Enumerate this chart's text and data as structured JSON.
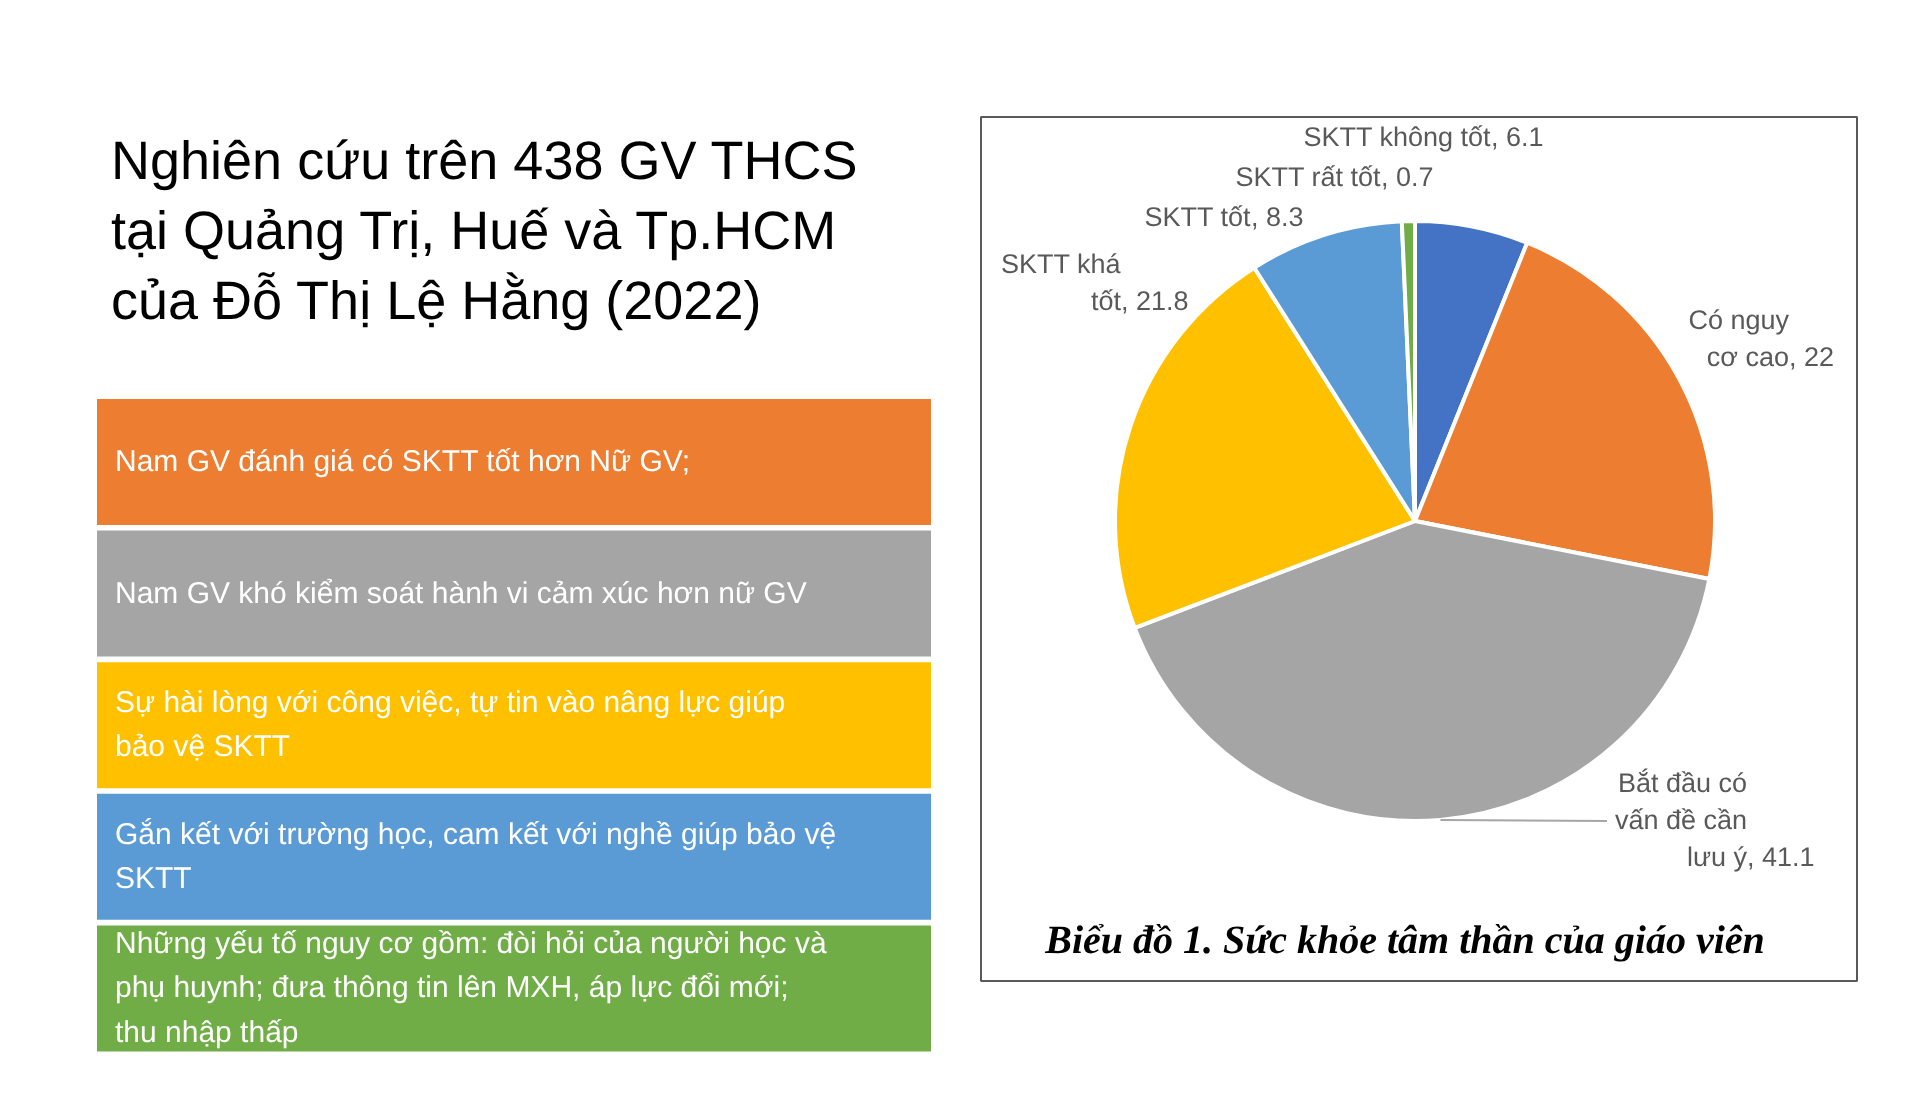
{
  "chart_data": [
    {
      "type": "other",
      "title": "Nghiên cứu trên 438 GV THCS tại Quảng Trị, Huế và Tp.HCM của Đỗ Thị Lệ Hằng (2022)",
      "annotations": [
        "Nam GV đánh giá có SKTT tốt hơn Nữ GV;",
        "Nam GV khó kiểm soát hành vi cảm xúc hơn nữ GV",
        "Sự hài lòng với công việc, tự tin vào nâng lực giúp bảo vệ SKTT",
        "Gắn kết với trường học, cam kết với nghề giúp bảo vệ SKTT",
        "Những yếu tố nguy cơ gồm: đòi hỏi của người học và phụ huynh; đưa thông tin lên MXH, áp lực đổi mới; thu nhập thấp"
      ]
    },
    {
      "type": "pie",
      "title": "Biểu đồ 1. Sức khỏe tâm thần của giáo viên",
      "categories": [
        "SKTT không tốt",
        "Có nguy cơ cao",
        "Bắt đầu có vấn đề cần lưu ý",
        "SKTT khá tốt",
        "SKTT tốt",
        "SKTT rất tốt"
      ],
      "values": [
        6.1,
        22,
        41.1,
        21.8,
        8.3,
        0.7
      ],
      "value_labels": [
        ", 6.1",
        ", 22",
        ", 41.1",
        ", 21.8",
        ", 8.3",
        ", 0.7"
      ],
      "colors": [
        "#4472c4",
        "#ed7d31",
        "#a5a5a5",
        "#ffc000",
        "#5b9bd5",
        "#70ad47"
      ]
    }
  ]
}
